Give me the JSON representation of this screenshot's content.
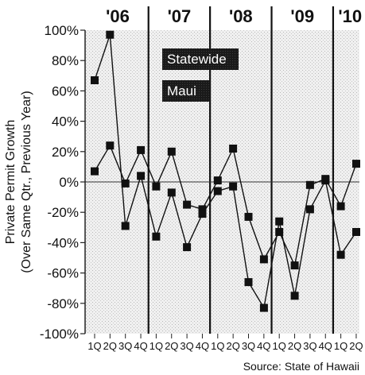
{
  "chart_data": {
    "type": "line",
    "ylabel_line1": "Private Permit Growth",
    "ylabel_line2": "(Over Same Qtr., Previous Year)",
    "source": "Source: State of Hawaii",
    "ylim": [
      -100,
      100
    ],
    "yticks": [
      "100%",
      "80%",
      "60%",
      "40%",
      "20%",
      "0%",
      "-20%",
      "-40%",
      "-60%",
      "-80%",
      "-100%"
    ],
    "years": [
      "'06",
      "'07",
      "'08",
      "'09",
      "'10"
    ],
    "quarter_labels": [
      "1Q",
      "2Q",
      "3Q",
      "4Q",
      "1Q",
      "2Q",
      "3Q",
      "4Q",
      "1Q",
      "2Q",
      "3Q",
      "4Q",
      "1Q",
      "2Q",
      "3Q",
      "4Q",
      "1Q",
      "2Q"
    ],
    "grid": false,
    "legend": [
      {
        "name": "Statewide"
      },
      {
        "name": "Maui"
      }
    ],
    "series": [
      {
        "name": "Statewide",
        "values": [
          7,
          24,
          -1,
          21,
          -3,
          20,
          -15,
          -18,
          1,
          22,
          -23,
          -51,
          -33,
          -55,
          -2,
          2,
          -16,
          12
        ]
      },
      {
        "name": "Maui",
        "values": [
          67,
          97,
          -29,
          4,
          -36,
          -7,
          -43,
          -21,
          -6,
          -3,
          -66,
          -83,
          -26,
          -75,
          -18,
          1,
          -48,
          -33
        ]
      }
    ]
  }
}
